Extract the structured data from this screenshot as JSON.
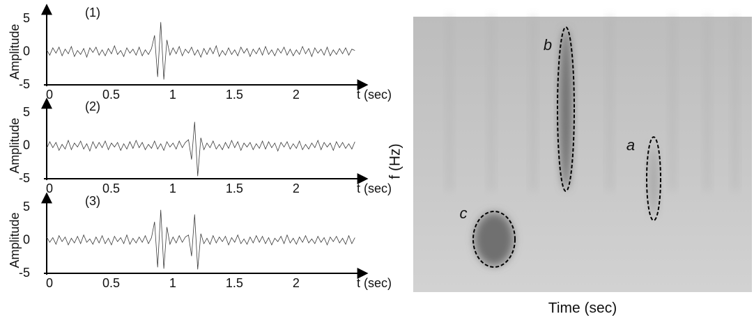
{
  "chart_data": [
    {
      "type": "line",
      "title": "(1)",
      "ylabel": "Amplitude",
      "xlabel": "t (sec)",
      "xlim": [
        0,
        2.6
      ],
      "xticks": [
        0,
        0.5,
        1,
        1.5,
        2
      ],
      "ylim": [
        -5,
        5
      ],
      "yticks": [
        -5,
        0,
        5
      ],
      "grid": false,
      "color": "#3a3a3a",
      "x": [
        0,
        0.025,
        0.05,
        0.075,
        0.1,
        0.125,
        0.15,
        0.175,
        0.2,
        0.225,
        0.25,
        0.275,
        0.3,
        0.325,
        0.35,
        0.375,
        0.4,
        0.425,
        0.45,
        0.475,
        0.5,
        0.525,
        0.55,
        0.575,
        0.6,
        0.625,
        0.65,
        0.675,
        0.7,
        0.725,
        0.75,
        0.775,
        0.8,
        0.825,
        0.85,
        0.875,
        0.9,
        0.925,
        0.95,
        0.975,
        1,
        1.025,
        1.05,
        1.075,
        1.1,
        1.125,
        1.15,
        1.175,
        1.2,
        1.225,
        1.25,
        1.275,
        1.3,
        1.325,
        1.35,
        1.375,
        1.4,
        1.425,
        1.45,
        1.475,
        1.5,
        1.525,
        1.55,
        1.575,
        1.6,
        1.625,
        1.65,
        1.675,
        1.7,
        1.725,
        1.75,
        1.775,
        1.8,
        1.825,
        1.85,
        1.875,
        1.9,
        1.925,
        1.95,
        1.975,
        2,
        2.025,
        2.05,
        2.075,
        2.1,
        2.125,
        2.15,
        2.175,
        2.2,
        2.225,
        2.25,
        2.275,
        2.3,
        2.325,
        2.35,
        2.375,
        2.4,
        2.425,
        2.45,
        2.475,
        2.5
      ],
      "values": [
        0.3,
        -0.5,
        0.6,
        -0.2,
        0.7,
        -0.6,
        0.4,
        -0.3,
        0.8,
        -0.7,
        0.2,
        -0.4,
        0.5,
        -0.8,
        0.6,
        -0.1,
        0.7,
        -0.5,
        0.3,
        -0.6,
        0.5,
        -0.3,
        0.9,
        -0.4,
        0.2,
        -0.7,
        0.6,
        -0.2,
        0.4,
        -0.5,
        0.7,
        -0.6,
        0.3,
        -0.4,
        0.5,
        2.5,
        -3.8,
        4.5,
        -4.2,
        1.8,
        -0.5,
        0.6,
        -0.3,
        0.8,
        -0.6,
        0.4,
        -0.2,
        0.7,
        -0.5,
        0.3,
        -0.8,
        0.5,
        -0.4,
        0.6,
        -0.3,
        0.9,
        -0.7,
        0.2,
        -0.5,
        0.6,
        -0.4,
        0.3,
        -0.6,
        0.7,
        -0.2,
        0.5,
        -0.7,
        0.4,
        -0.3,
        0.6,
        -0.5,
        0.8,
        -0.4,
        0.3,
        -0.6,
        0.5,
        -0.2,
        0.7,
        -0.5,
        0.4,
        -0.6,
        0.3,
        -0.4,
        0.8,
        -0.3,
        0.5,
        -0.7,
        0.6,
        -0.2,
        0.4,
        -0.5,
        0.7,
        -0.6,
        0.3,
        -0.4,
        0.5,
        -0.3,
        0.6,
        -0.5,
        0.4,
        0.2
      ]
    },
    {
      "type": "line",
      "title": "(2)",
      "ylabel": "Amplitude",
      "xlabel": "t (sec)",
      "xlim": [
        0,
        2.6
      ],
      "xticks": [
        0,
        0.5,
        1,
        1.5,
        2
      ],
      "ylim": [
        -5,
        5
      ],
      "yticks": [
        -5,
        0,
        5
      ],
      "grid": false,
      "color": "#3a3a3a",
      "x": [
        0,
        0.025,
        0.05,
        0.075,
        0.1,
        0.125,
        0.15,
        0.175,
        0.2,
        0.225,
        0.25,
        0.275,
        0.3,
        0.325,
        0.35,
        0.375,
        0.4,
        0.425,
        0.45,
        0.475,
        0.5,
        0.525,
        0.55,
        0.575,
        0.6,
        0.625,
        0.65,
        0.675,
        0.7,
        0.725,
        0.75,
        0.775,
        0.8,
        0.825,
        0.85,
        0.875,
        0.9,
        0.925,
        0.95,
        0.975,
        1,
        1.025,
        1.05,
        1.075,
        1.1,
        1.125,
        1.15,
        1.175,
        1.2,
        1.225,
        1.25,
        1.275,
        1.3,
        1.325,
        1.35,
        1.375,
        1.4,
        1.425,
        1.45,
        1.475,
        1.5,
        1.525,
        1.55,
        1.575,
        1.6,
        1.625,
        1.65,
        1.675,
        1.7,
        1.725,
        1.75,
        1.775,
        1.8,
        1.825,
        1.85,
        1.875,
        1.9,
        1.925,
        1.95,
        1.975,
        2,
        2.025,
        2.05,
        2.075,
        2.1,
        2.125,
        2.15,
        2.175,
        2.2,
        2.225,
        2.25,
        2.275,
        2.3,
        2.325,
        2.35,
        2.375,
        2.4,
        2.425,
        2.45,
        2.475,
        2.5
      ],
      "values": [
        -0.4,
        0.6,
        -0.3,
        0.5,
        -0.7,
        0.2,
        -0.5,
        0.8,
        -0.6,
        0.4,
        -0.2,
        0.7,
        -0.5,
        0.3,
        -0.8,
        0.6,
        -0.4,
        0.5,
        -0.3,
        0.7,
        -0.6,
        0.4,
        -0.2,
        0.5,
        -0.7,
        0.3,
        -0.5,
        0.6,
        -0.4,
        0.8,
        -0.3,
        0.5,
        -0.6,
        0.2,
        -0.4,
        0.7,
        -0.5,
        0.3,
        -0.7,
        0.6,
        -0.2,
        0.4,
        -0.5,
        0.7,
        -0.3,
        0.5,
        0.9,
        -2.1,
        3.6,
        -4.6,
        1.2,
        -0.6,
        0.4,
        -0.3,
        0.7,
        -0.5,
        0.2,
        -0.6,
        0.5,
        -0.4,
        0.8,
        -0.3,
        0.6,
        -0.7,
        0.4,
        -0.2,
        0.5,
        -0.6,
        0.3,
        -0.4,
        0.7,
        -0.5,
        0.6,
        -0.3,
        0.4,
        -0.8,
        0.5,
        -0.2,
        0.6,
        -0.5,
        0.3,
        -0.4,
        0.7,
        -0.6,
        0.2,
        -0.5,
        0.4,
        -0.3,
        0.8,
        -0.6,
        0.5,
        -0.2,
        0.4,
        -0.7,
        0.6,
        -0.3,
        0.5,
        -0.4,
        0.3,
        -0.5,
        0.6
      ]
    },
    {
      "type": "line",
      "title": "(3)",
      "ylabel": "Amplitude",
      "xlabel": "t (sec)",
      "xlim": [
        0,
        2.6
      ],
      "xticks": [
        0,
        0.5,
        1,
        1.5,
        2
      ],
      "ylim": [
        -5,
        5
      ],
      "yticks": [
        -5,
        0,
        5
      ],
      "grid": false,
      "color": "#3a3a3a",
      "x": [
        0,
        0.025,
        0.05,
        0.075,
        0.1,
        0.125,
        0.15,
        0.175,
        0.2,
        0.225,
        0.25,
        0.275,
        0.3,
        0.325,
        0.35,
        0.375,
        0.4,
        0.425,
        0.45,
        0.475,
        0.5,
        0.525,
        0.55,
        0.575,
        0.6,
        0.625,
        0.65,
        0.675,
        0.7,
        0.725,
        0.75,
        0.775,
        0.8,
        0.825,
        0.85,
        0.875,
        0.9,
        0.925,
        0.95,
        0.975,
        1,
        1.025,
        1.05,
        1.075,
        1.1,
        1.125,
        1.15,
        1.175,
        1.2,
        1.225,
        1.25,
        1.275,
        1.3,
        1.325,
        1.35,
        1.375,
        1.4,
        1.425,
        1.45,
        1.475,
        1.5,
        1.525,
        1.55,
        1.575,
        1.6,
        1.625,
        1.65,
        1.675,
        1.7,
        1.725,
        1.75,
        1.775,
        1.8,
        1.825,
        1.85,
        1.875,
        1.9,
        1.925,
        1.95,
        1.975,
        2,
        2.025,
        2.05,
        2.075,
        2.1,
        2.125,
        2.15,
        2.175,
        2.2,
        2.225,
        2.25,
        2.275,
        2.3,
        2.325,
        2.35,
        2.375,
        2.4,
        2.425,
        2.45,
        2.475,
        2.5
      ],
      "values": [
        0.5,
        -0.3,
        0.4,
        -0.6,
        0.7,
        -0.2,
        0.5,
        -0.7,
        0.3,
        -0.4,
        0.6,
        -0.5,
        0.8,
        -0.3,
        0.2,
        -0.6,
        0.5,
        -0.4,
        0.7,
        -0.5,
        0.3,
        -0.7,
        0.6,
        -0.2,
        0.4,
        -0.5,
        0.8,
        -0.6,
        0.3,
        -0.4,
        0.5,
        -0.3,
        0.7,
        -0.5,
        0.4,
        2.8,
        -4.1,
        4.6,
        -4.3,
        2.0,
        -0.6,
        0.5,
        -0.4,
        0.7,
        -0.3,
        0.5,
        0.8,
        -2.4,
        3.9,
        -4.4,
        1.0,
        -0.5,
        0.3,
        -0.6,
        0.7,
        -0.4,
        0.5,
        -0.2,
        0.6,
        -0.7,
        0.4,
        -0.3,
        0.8,
        -0.5,
        0.2,
        -0.6,
        0.5,
        -0.4,
        0.7,
        -0.3,
        0.6,
        -0.5,
        0.4,
        -0.7,
        0.3,
        -0.2,
        0.6,
        -0.5,
        0.8,
        -0.4,
        0.3,
        -0.6,
        0.5,
        -0.3,
        0.7,
        -0.4,
        0.2,
        -0.5,
        0.6,
        -0.3,
        0.4,
        -0.7,
        0.5,
        -0.2,
        0.6,
        -0.4,
        0.3,
        -0.6,
        0.7,
        -0.5,
        0.4
      ]
    },
    {
      "type": "spectrogram",
      "xlabel": "Time (sec)",
      "ylabel": "f (Hz)",
      "annotations": [
        "a",
        "b",
        "c"
      ]
    }
  ]
}
